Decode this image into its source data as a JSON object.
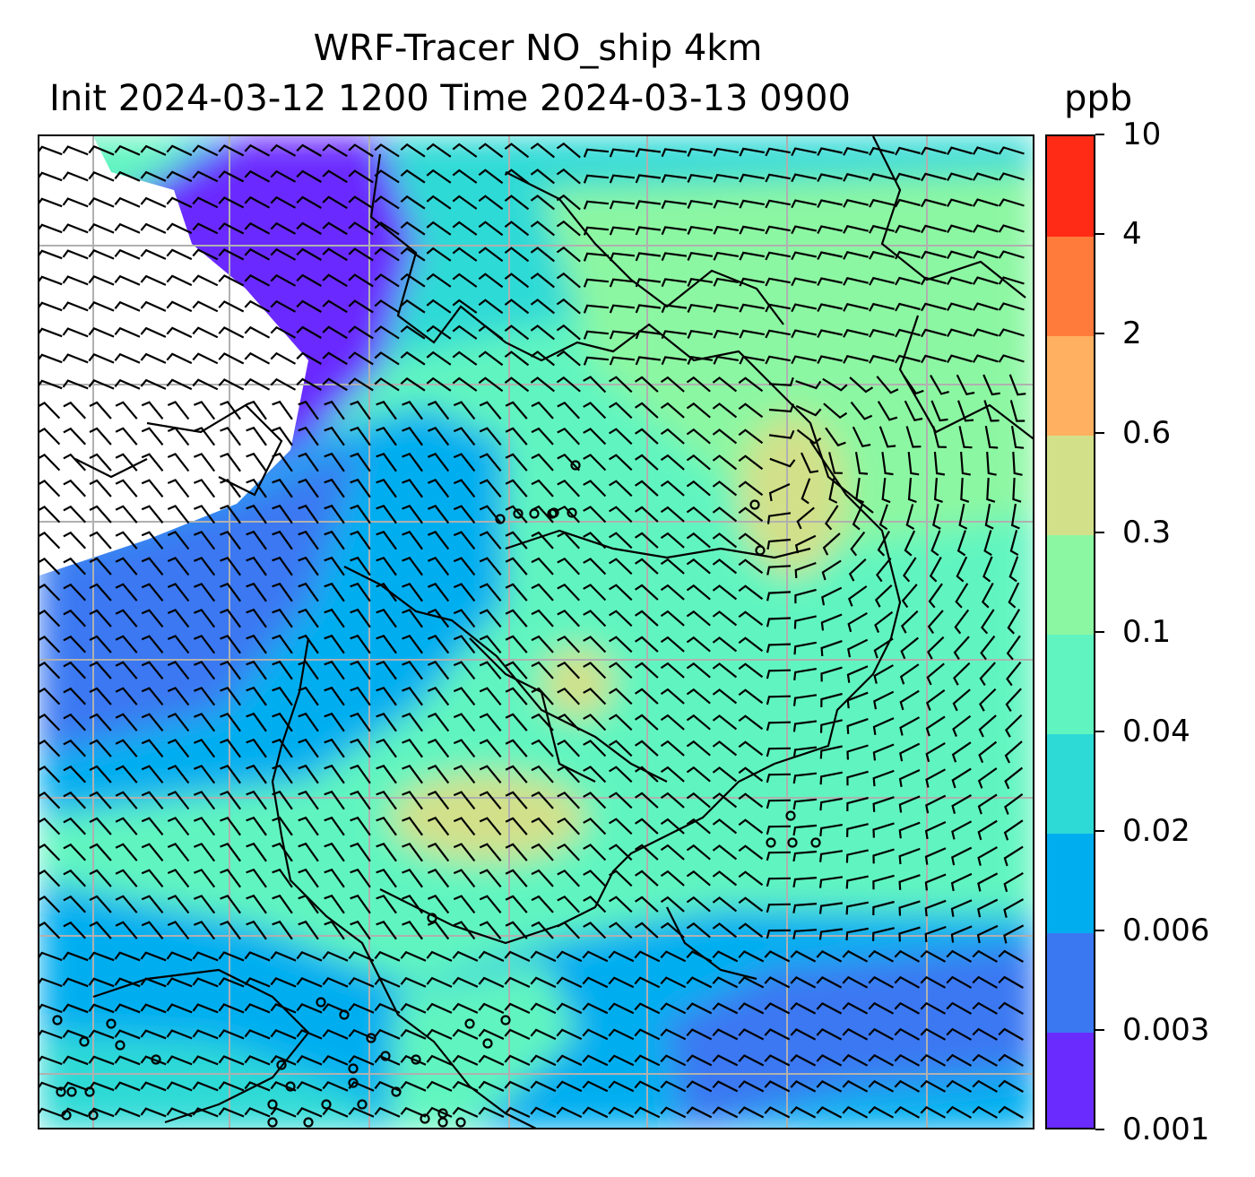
{
  "title_line1": "WRF-Tracer NO_ship 4km",
  "title_line2": "Init 2024-03-12 1200 Time 2024-03-13 0900",
  "units": "ppb",
  "colorbar": {
    "levels": [
      "0.001",
      "0.003",
      "0.006",
      "0.02",
      "0.04",
      "0.1",
      "0.3",
      "0.6",
      "2",
      "4",
      "10"
    ],
    "colors": [
      "#6a2bff",
      "#3a78f2",
      "#00aef0",
      "#2edad6",
      "#60f5c0",
      "#8cf7a2",
      "#d2e08a",
      "#ffb061",
      "#ff7b3c",
      "#ff2b17"
    ]
  },
  "map": {
    "background_color": "#ffffff",
    "gridline_color": "#b0b0b0",
    "coastline_color": "#000000",
    "wind_barb_color": "#000000"
  }
}
